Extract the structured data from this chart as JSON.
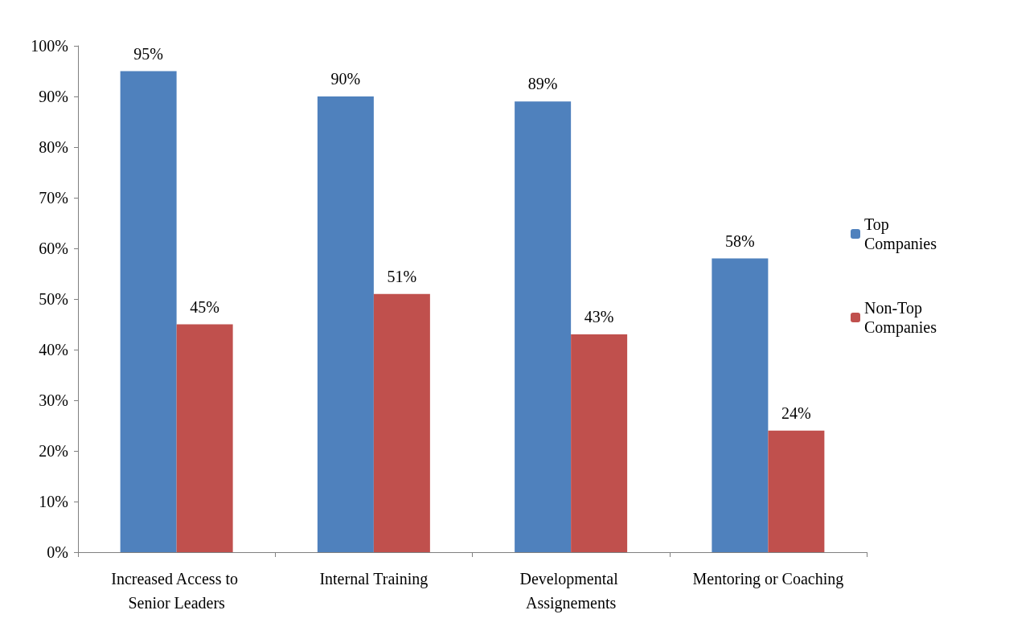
{
  "chart_data": {
    "type": "bar",
    "categories": [
      "Increased Access to Senior Leaders",
      "Internal Training",
      "Developmental Assignements",
      "Mentoring or Coaching"
    ],
    "series": [
      {
        "name": "Top Companies",
        "color": "#4f81bd",
        "values": [
          95,
          90,
          89,
          58
        ],
        "value_labels": [
          "95%",
          "90%",
          "89%",
          "58%"
        ]
      },
      {
        "name": "Non-Top Companies",
        "color": "#c0504d",
        "values": [
          45,
          51,
          43,
          24
        ],
        "value_labels": [
          "45%",
          "51%",
          "43%",
          "24%"
        ]
      }
    ],
    "ylim": [
      0,
      100
    ],
    "yticks": [
      {
        "value": 0,
        "label": "0%"
      },
      {
        "value": 10,
        "label": "10%"
      },
      {
        "value": 20,
        "label": "20%"
      },
      {
        "value": 30,
        "label": "30%"
      },
      {
        "value": 40,
        "label": "40%"
      },
      {
        "value": 50,
        "label": "50%"
      },
      {
        "value": 60,
        "label": "60%"
      },
      {
        "value": 70,
        "label": "70%"
      },
      {
        "value": 80,
        "label": "80%"
      },
      {
        "value": 90,
        "label": "90%"
      },
      {
        "value": 100,
        "label": "100%"
      }
    ],
    "grid": false,
    "legend": "right"
  }
}
